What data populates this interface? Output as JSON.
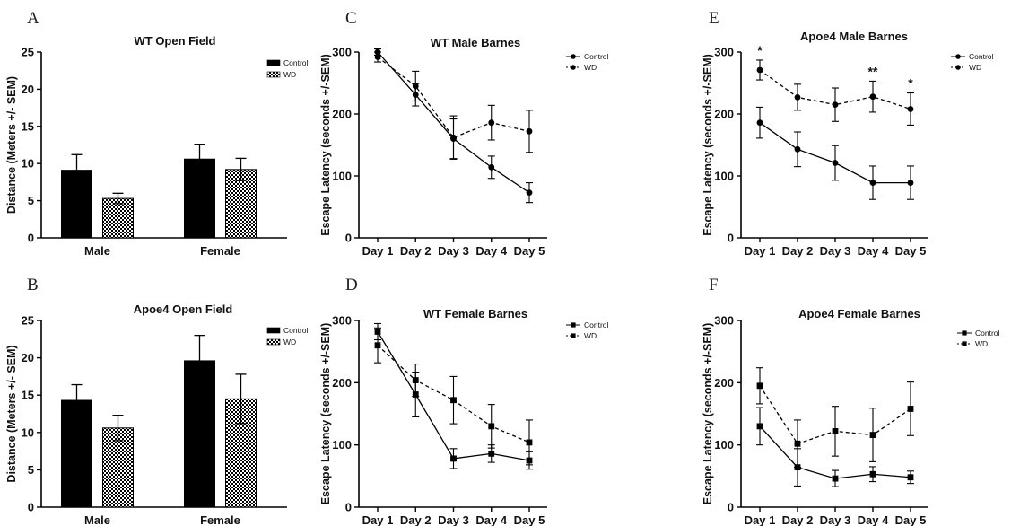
{
  "colors": {
    "control": "#000000",
    "wd_pattern_fg": "#000000",
    "wd_pattern_bg": "#ffffff",
    "axis": "#000000"
  },
  "chart_data": [
    {
      "id": "A",
      "letter": "A",
      "type": "bar",
      "title": "WT Open Field",
      "ylabel": "Distance (Meters +/- SEM)",
      "xlabel": "",
      "ylim": [
        0,
        25
      ],
      "yticks": [
        0,
        5,
        10,
        15,
        20,
        25
      ],
      "categories": [
        "Male",
        "Female"
      ],
      "series": [
        {
          "name": "Control",
          "values": [
            9.1,
            10.6
          ],
          "sem": [
            2.1,
            2.0
          ]
        },
        {
          "name": "WD",
          "values": [
            5.3,
            9.2
          ],
          "sem": [
            0.7,
            1.5
          ]
        }
      ],
      "legend": "top-right"
    },
    {
      "id": "B",
      "letter": "B",
      "type": "bar",
      "title": "Apoe4 Open Field",
      "ylabel": "Distance (Meters +/- SEM)",
      "xlabel": "",
      "ylim": [
        0,
        25
      ],
      "yticks": [
        0,
        5,
        10,
        15,
        20,
        25
      ],
      "categories": [
        "Male",
        "Female"
      ],
      "series": [
        {
          "name": "Control",
          "values": [
            14.3,
            19.6
          ],
          "sem": [
            2.1,
            3.4
          ]
        },
        {
          "name": "WD",
          "values": [
            10.6,
            14.5
          ],
          "sem": [
            1.7,
            3.3
          ]
        }
      ],
      "legend": "top-right"
    },
    {
      "id": "C",
      "letter": "C",
      "type": "line",
      "title": "WT Male Barnes",
      "ylabel": "Escape Latency (seconds +/-SEM)",
      "xlabel": "",
      "ylim": [
        0,
        300
      ],
      "yticks": [
        0,
        100,
        200,
        300
      ],
      "categories": [
        "Day 1",
        "Day 2",
        "Day 3",
        "Day 4",
        "Day 5"
      ],
      "marker": "circle",
      "series": [
        {
          "name": "Control",
          "values": [
            300,
            231,
            160,
            114,
            73
          ],
          "sem": [
            5,
            18,
            32,
            18,
            16
          ],
          "dash": false
        },
        {
          "name": "WD",
          "values": [
            292,
            245,
            162,
            186,
            172
          ],
          "sem": [
            8,
            24,
            35,
            28,
            34
          ],
          "dash": true
        }
      ],
      "annotations": [],
      "legend": "top-right"
    },
    {
      "id": "D",
      "letter": "D",
      "type": "line",
      "title": "WT Female Barnes",
      "ylabel": "Escape Latency (seconds +/-SEM)",
      "xlabel": "",
      "ylim": [
        0,
        300
      ],
      "yticks": [
        0,
        100,
        200,
        300
      ],
      "categories": [
        "Day 1",
        "Day 2",
        "Day 3",
        "Day 4",
        "Day 5"
      ],
      "marker": "square",
      "series": [
        {
          "name": "Control",
          "values": [
            282,
            181,
            78,
            86,
            75
          ],
          "sem": [
            13,
            36,
            16,
            14,
            14
          ],
          "dash": false
        },
        {
          "name": "WD",
          "values": [
            260,
            204,
            172,
            130,
            104
          ],
          "sem": [
            28,
            26,
            38,
            35,
            36
          ],
          "dash": true
        }
      ],
      "annotations": [],
      "legend": "top-right"
    },
    {
      "id": "E",
      "letter": "E",
      "type": "line",
      "title": "Apoe4 Male Barnes",
      "ylabel": "Escape Latency (seconds +/-SEM)",
      "xlabel": "",
      "ylim": [
        0,
        300
      ],
      "yticks": [
        0,
        100,
        200,
        300
      ],
      "categories": [
        "Day 1",
        "Day 2",
        "Day 3",
        "Day 4",
        "Day 5"
      ],
      "marker": "circle",
      "series": [
        {
          "name": "Control",
          "values": [
            186,
            143,
            121,
            89,
            89
          ],
          "sem": [
            25,
            28,
            28,
            27,
            27
          ],
          "dash": false
        },
        {
          "name": "WD",
          "values": [
            271,
            227,
            215,
            228,
            208
          ],
          "sem": [
            16,
            21,
            27,
            25,
            26
          ],
          "dash": true
        }
      ],
      "annotations": [
        {
          "index": 0,
          "text": "*"
        },
        {
          "index": 3,
          "text": "**"
        },
        {
          "index": 4,
          "text": "*"
        }
      ],
      "legend": "top-right"
    },
    {
      "id": "F",
      "letter": "F",
      "type": "line",
      "title": "Apoe4 Female Barnes",
      "ylabel": "Escape Latency (seconds +/-SEM)",
      "xlabel": "",
      "ylim": [
        0,
        300
      ],
      "yticks": [
        0,
        100,
        200,
        300
      ],
      "categories": [
        "Day 1",
        "Day 2",
        "Day 3",
        "Day 4",
        "Day 5"
      ],
      "marker": "square",
      "series": [
        {
          "name": "Control",
          "values": [
            130,
            64,
            46,
            53,
            48
          ],
          "sem": [
            30,
            30,
            13,
            12,
            10
          ],
          "dash": false
        },
        {
          "name": "WD",
          "values": [
            195,
            102,
            122,
            116,
            158
          ],
          "sem": [
            29,
            38,
            40,
            43,
            43
          ],
          "dash": true
        }
      ],
      "annotations": [],
      "legend": "top-right"
    }
  ]
}
